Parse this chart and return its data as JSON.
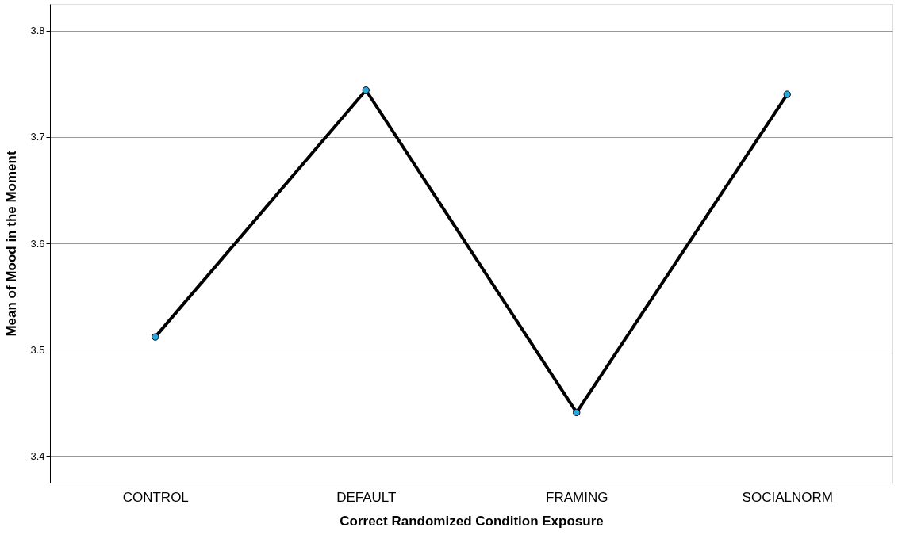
{
  "chart_data": {
    "type": "line",
    "xlabel": "Correct Randomized Condition Exposure",
    "ylabel": "Mean of Mood in the Moment",
    "categories": [
      "CONTROL",
      "DEFAULT",
      "FRAMING",
      "SOCIALNORM"
    ],
    "series": [
      {
        "color": "#000000",
        "colors": [
          "#29a9e1",
          "#29a9e1",
          "#29a9e1",
          "#29a9e1"
        ],
        "values": [
          3.512,
          3.744,
          3.441,
          3.74
        ]
      }
    ],
    "ylim": [
      3.375,
      3.825
    ],
    "yticks": [
      3.4,
      3.5,
      3.6,
      3.7,
      3.8
    ],
    "grid": "y",
    "marker": "circle",
    "line_style": "solid"
  }
}
